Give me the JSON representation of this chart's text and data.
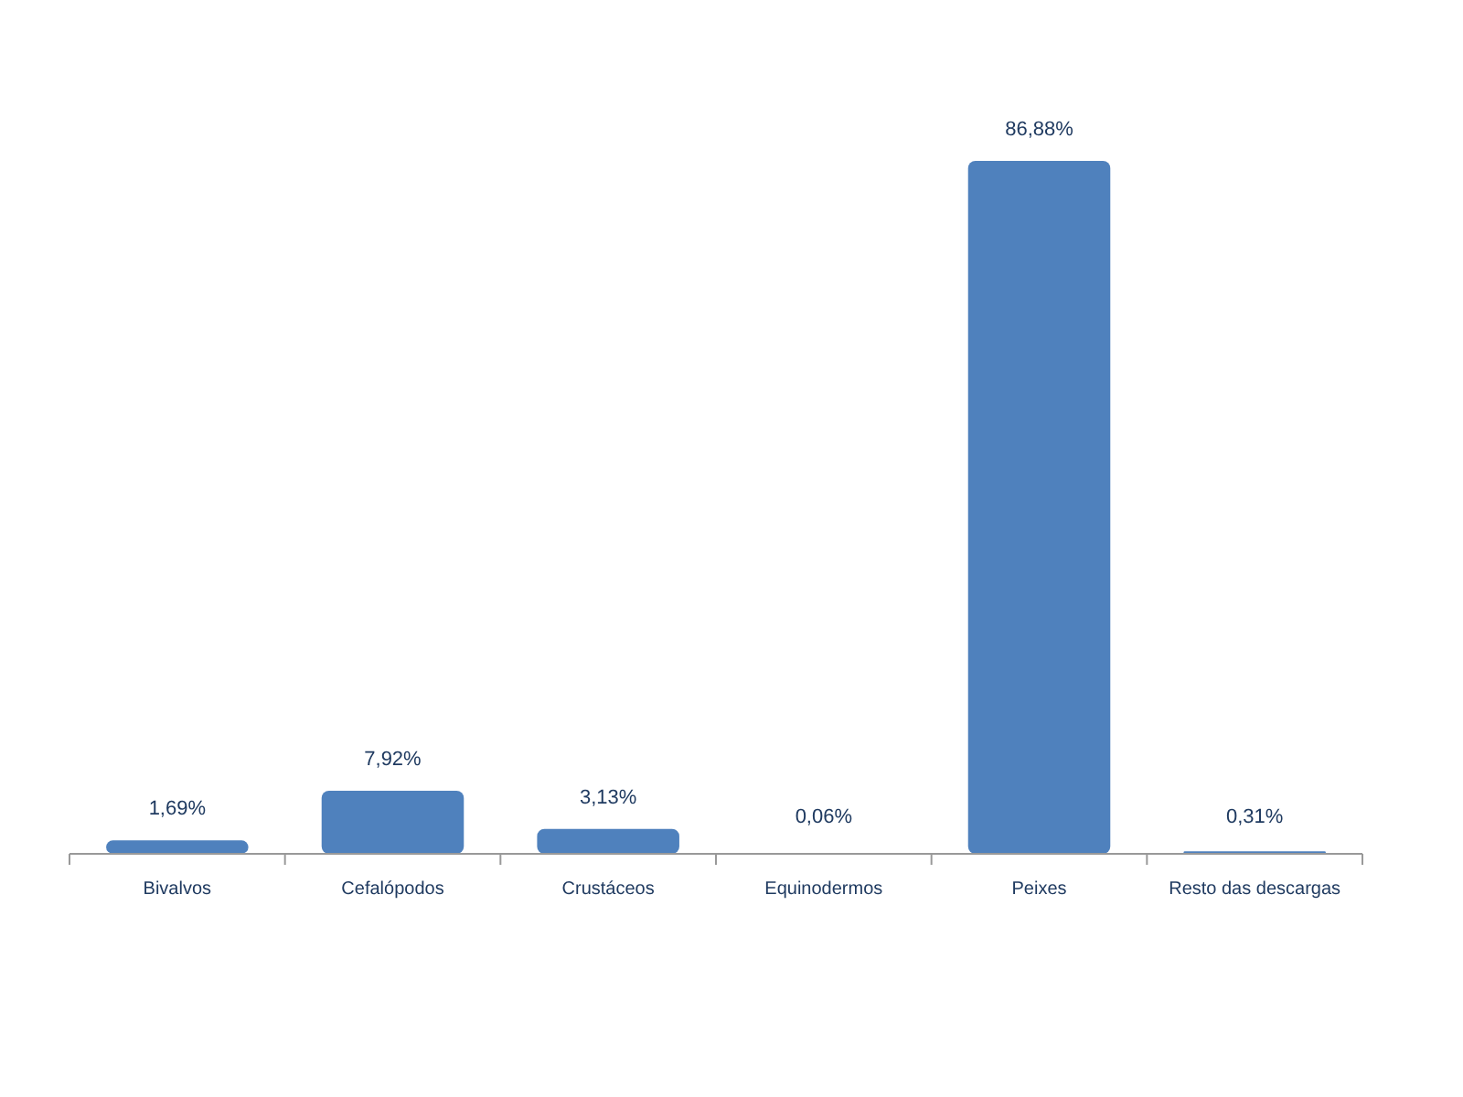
{
  "chart_data": {
    "type": "bar",
    "categories": [
      "Bivalvos",
      "Cefalópodos",
      "Crustáceos",
      "Equinodermos",
      "Peixes",
      "Resto das descargas"
    ],
    "values": [
      1.69,
      7.92,
      3.13,
      0.06,
      86.88,
      0.31
    ],
    "value_labels": [
      "1,69%",
      "7,92%",
      "3,13%",
      "0,06%",
      "86,88%",
      "0,31%"
    ],
    "color": "#4f81bd"
  }
}
